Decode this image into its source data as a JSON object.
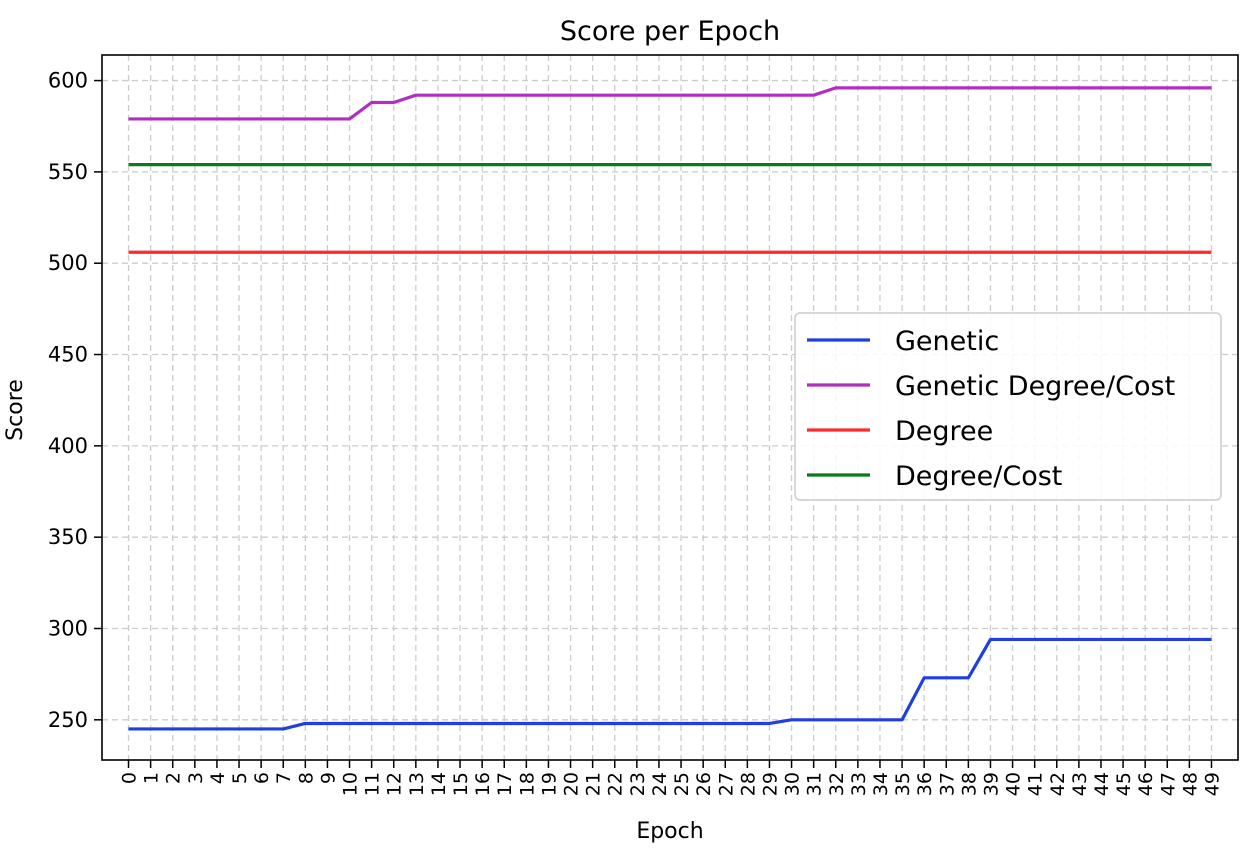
{
  "chart_data": {
    "type": "line",
    "title": "Score per Epoch",
    "xlabel": "Epoch",
    "ylabel": "Score",
    "x": [
      0,
      1,
      2,
      3,
      4,
      5,
      6,
      7,
      8,
      9,
      10,
      11,
      12,
      13,
      14,
      15,
      16,
      17,
      18,
      19,
      20,
      21,
      22,
      23,
      24,
      25,
      26,
      27,
      28,
      29,
      30,
      31,
      32,
      33,
      34,
      35,
      36,
      37,
      38,
      39,
      40,
      41,
      42,
      43,
      44,
      45,
      46,
      47,
      48,
      49
    ],
    "xlim": [
      -1.2,
      50.2
    ],
    "ylim": [
      228,
      614
    ],
    "yticks": [
      250,
      300,
      350,
      400,
      450,
      500,
      550,
      600
    ],
    "grid": true,
    "legend_position": "center-right",
    "series": [
      {
        "name": "Genetic",
        "color": "#1f3fe0",
        "values": [
          245,
          245,
          245,
          245,
          245,
          245,
          245,
          245,
          248,
          248,
          248,
          248,
          248,
          248,
          248,
          248,
          248,
          248,
          248,
          248,
          248,
          248,
          248,
          248,
          248,
          248,
          248,
          248,
          248,
          248,
          250,
          250,
          250,
          250,
          250,
          250,
          273,
          273,
          273,
          294,
          294,
          294,
          294,
          294,
          294,
          294,
          294,
          294,
          294,
          294
        ]
      },
      {
        "name": "Genetic Degree/Cost",
        "color": "#b02fc0",
        "values": [
          579,
          579,
          579,
          579,
          579,
          579,
          579,
          579,
          579,
          579,
          579,
          588,
          588,
          592,
          592,
          592,
          592,
          592,
          592,
          592,
          592,
          592,
          592,
          592,
          592,
          592,
          592,
          592,
          592,
          592,
          592,
          592,
          596,
          596,
          596,
          596,
          596,
          596,
          596,
          596,
          596,
          596,
          596,
          596,
          596,
          596,
          596,
          596,
          596,
          596
        ]
      },
      {
        "name": "Degree",
        "color": "#ff2a2a",
        "values": [
          506,
          506,
          506,
          506,
          506,
          506,
          506,
          506,
          506,
          506,
          506,
          506,
          506,
          506,
          506,
          506,
          506,
          506,
          506,
          506,
          506,
          506,
          506,
          506,
          506,
          506,
          506,
          506,
          506,
          506,
          506,
          506,
          506,
          506,
          506,
          506,
          506,
          506,
          506,
          506,
          506,
          506,
          506,
          506,
          506,
          506,
          506,
          506,
          506,
          506
        ]
      },
      {
        "name": "Degree/Cost",
        "color": "#0a7a1e",
        "values": [
          554,
          554,
          554,
          554,
          554,
          554,
          554,
          554,
          554,
          554,
          554,
          554,
          554,
          554,
          554,
          554,
          554,
          554,
          554,
          554,
          554,
          554,
          554,
          554,
          554,
          554,
          554,
          554,
          554,
          554,
          554,
          554,
          554,
          554,
          554,
          554,
          554,
          554,
          554,
          554,
          554,
          554,
          554,
          554,
          554,
          554,
          554,
          554,
          554,
          554
        ]
      }
    ]
  }
}
